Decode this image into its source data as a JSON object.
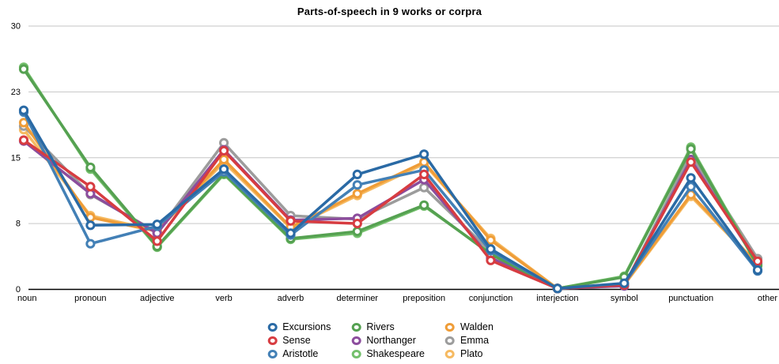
{
  "chart_data": {
    "type": "line",
    "title": "Parts-of-speech in 9 works or corpra",
    "xlabel": "",
    "ylabel": "",
    "ylim": [
      0,
      30
    ],
    "grid": true,
    "legend_position": "bottom",
    "y_ticks": [
      {
        "label": "0",
        "value": 0
      },
      {
        "label": "8",
        "value": 7.5
      },
      {
        "label": "15",
        "value": 15
      },
      {
        "label": "23",
        "value": 22.5
      },
      {
        "label": "30",
        "value": 30
      }
    ],
    "categories": [
      "noun",
      "pronoun",
      "adjective",
      "verb",
      "adverb",
      "determiner",
      "preposition",
      "conjunction",
      "interjection",
      "symbol",
      "punctuation",
      "other"
    ],
    "series": [
      {
        "name": "Excursions",
        "color": "#2a6aa5",
        "values": [
          20.4,
          7.3,
          7.4,
          13.7,
          6.4,
          13.1,
          15.4,
          4.6,
          0.1,
          0.7,
          12.7,
          2.2
        ]
      },
      {
        "name": "Sense",
        "color": "#d73c41",
        "values": [
          17.0,
          11.7,
          5.5,
          15.8,
          7.8,
          7.5,
          13.1,
          3.3,
          0.1,
          0.5,
          14.5,
          3.2
        ]
      },
      {
        "name": "Aristotle",
        "color": "#4380b6",
        "values": [
          20.2,
          5.2,
          7.2,
          13.4,
          6.2,
          11.9,
          13.6,
          4.4,
          0.1,
          0.6,
          11.7,
          2.1
        ]
      },
      {
        "name": "Rivers",
        "color": "#55a151",
        "values": [
          25.1,
          13.9,
          4.9,
          13.2,
          5.8,
          6.6,
          9.6,
          4.0,
          0.1,
          1.4,
          16.0,
          2.7
        ]
      },
      {
        "name": "Northanger",
        "color": "#8c4d9d",
        "values": [
          16.9,
          10.9,
          6.4,
          15.9,
          7.9,
          8.1,
          12.5,
          3.6,
          0.1,
          0.4,
          14.8,
          3.0
        ]
      },
      {
        "name": "Shakespeare",
        "color": "#74c06c",
        "values": [
          25.3,
          13.7,
          4.8,
          13.1,
          5.7,
          6.4,
          9.5,
          4.1,
          0.1,
          1.5,
          16.2,
          2.8
        ]
      },
      {
        "name": "Walden",
        "color": "#ef9d38",
        "values": [
          19.0,
          8.2,
          6.6,
          14.8,
          7.1,
          10.9,
          14.5,
          5.6,
          0.1,
          0.6,
          10.8,
          2.9
        ]
      },
      {
        "name": "Emma",
        "color": "#9c9c9c",
        "values": [
          18.6,
          10.8,
          6.5,
          16.7,
          8.4,
          8.0,
          11.6,
          4.3,
          0.1,
          0.4,
          15.4,
          3.5
        ]
      },
      {
        "name": "Plato",
        "color": "#f6ba61",
        "values": [
          18.2,
          8.4,
          6.7,
          14.5,
          7.0,
          10.7,
          14.3,
          5.8,
          0.1,
          0.5,
          10.6,
          2.8
        ]
      }
    ],
    "style": {
      "gridline_color": "#c6c6c6",
      "axis_color": "#000000",
      "background": "#ffffff"
    }
  }
}
